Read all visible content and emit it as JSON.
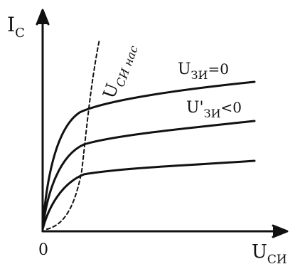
{
  "axes": {
    "y_label_main": "I",
    "y_label_sub": "C",
    "x_label_main": "U",
    "x_label_sub": "СИ",
    "origin_label": "0"
  },
  "curves": {
    "top_label_main": "U",
    "top_label_sub": "ЗИ",
    "top_label_cond": "=0",
    "mid_label_main": "U'",
    "mid_label_sub": "ЗИ",
    "mid_label_cond": "<0",
    "sat_label_main": "U",
    "sat_label_sub": "СИ нас"
  },
  "colors": {
    "stroke": "#111111",
    "background": "#ffffff"
  }
}
